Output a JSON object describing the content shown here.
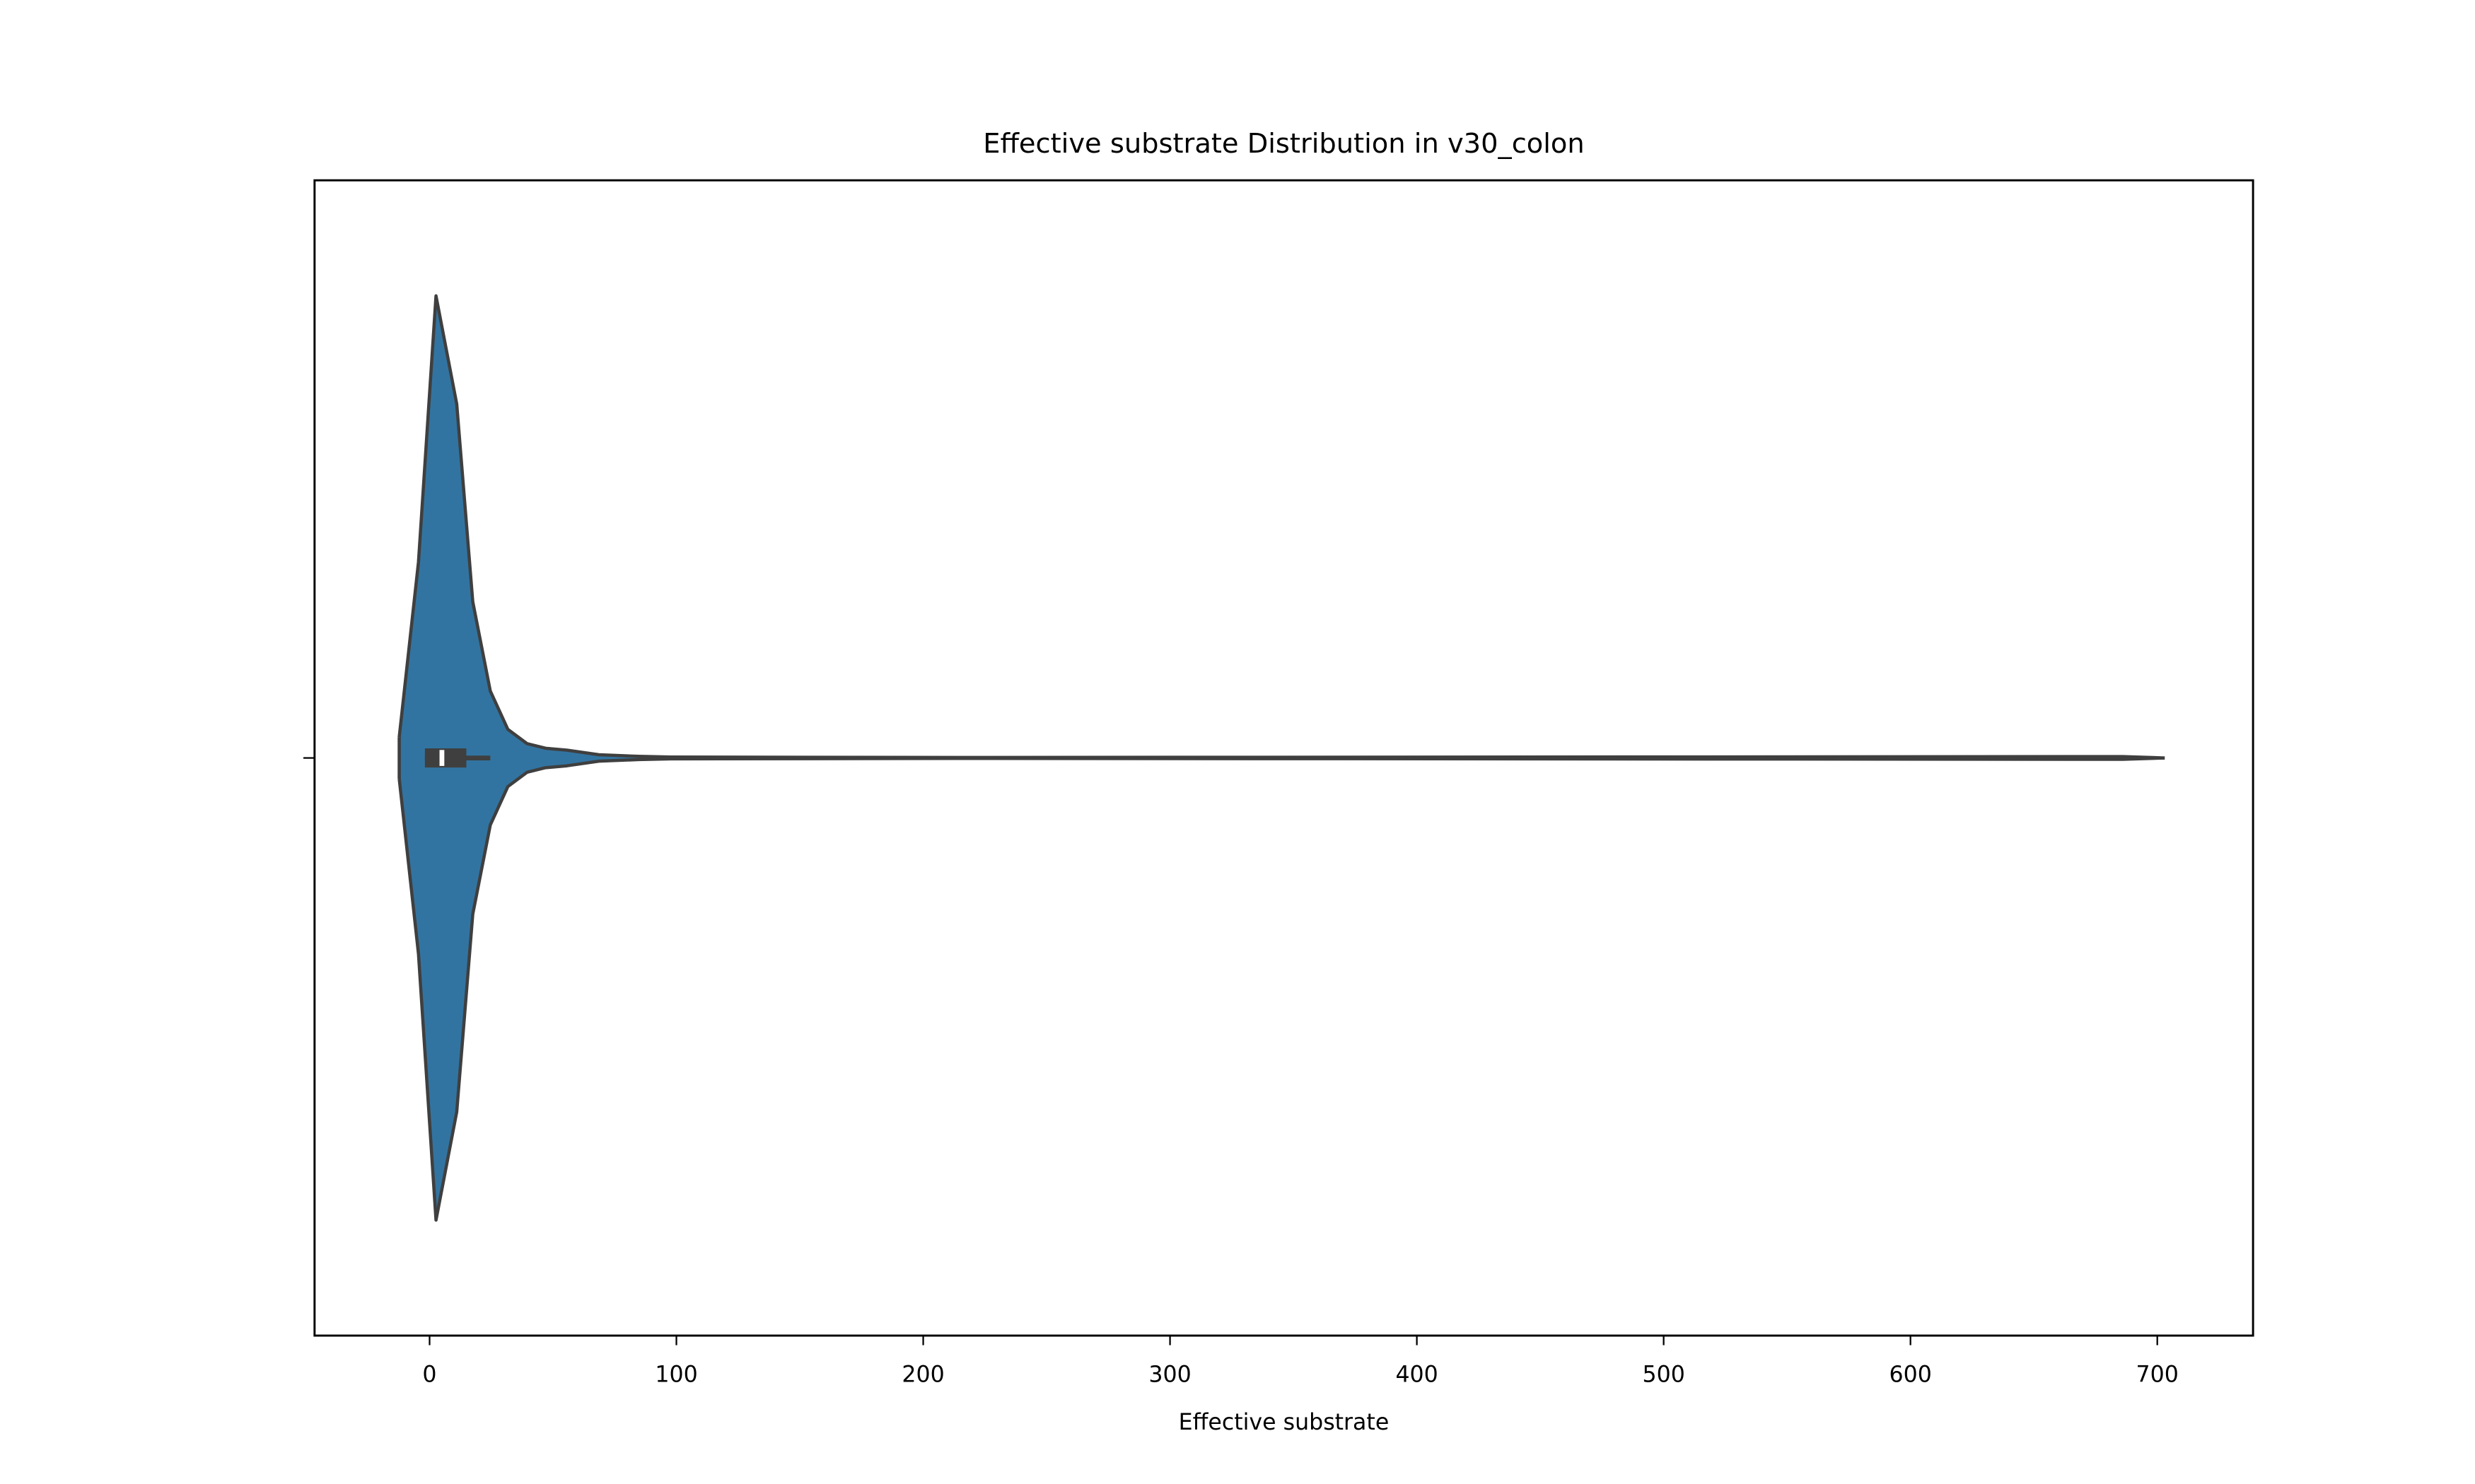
{
  "chart_data": {
    "type": "violin",
    "title": "Effective substrate Distribution in v30_colon",
    "xlabel": "Effective substrate",
    "xlim": [
      -46.6,
      738.8
    ],
    "xticks": [
      0,
      100,
      200,
      300,
      400,
      500,
      600,
      700
    ],
    "color": "#3274a1",
    "edge_color": "#3f3f3f",
    "x": [
      -12.3,
      -4.5,
      2.6,
      11,
      17.5,
      24.6,
      31.7,
      39.5,
      47,
      55.6,
      68.6,
      84.7,
      97.7,
      214,
      686,
      703
    ],
    "density": [
      0.045,
      0.424,
      1,
      0.766,
      0.338,
      0.145,
      0.062,
      0.031,
      0.021,
      0.017,
      0.007,
      0.0035,
      0.002,
      0.001,
      0.003,
      0
    ],
    "box": {
      "q1": -1.9,
      "median": 5,
      "q3": 14.9,
      "whisker_low": -1.9,
      "whisker_high": 24.6
    }
  }
}
